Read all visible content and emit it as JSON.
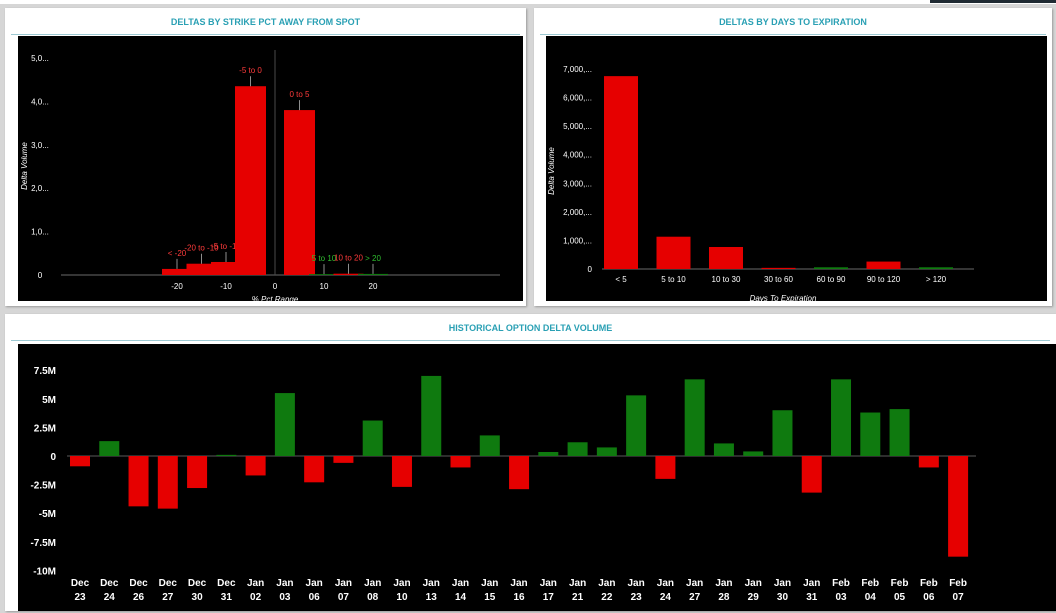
{
  "colors": {
    "positive": "#0f7a0f",
    "negative": "#e60000",
    "panel_title": "#2aa0b4",
    "background": "#000000"
  },
  "chart_data": [
    {
      "type": "bar",
      "title": "DELTAS BY STRIKE PCT AWAY FROM SPOT",
      "xlabel": "% Pct Range",
      "ylabel": "Delta Volume",
      "x_ticks": [
        "-20",
        "-10",
        "0",
        "10",
        "20"
      ],
      "y_ticks": [
        "0",
        "1,0...",
        "2,0...",
        "3,0...",
        "4,0...",
        "5,0..."
      ],
      "ylim": [
        0,
        5000
      ],
      "categories": [
        "< -20",
        "-20 to -10",
        "-5 to -10",
        "-5 to 0",
        "0 to 5",
        "5 to 10",
        "10 to 20",
        "> 20"
      ],
      "values": [
        140,
        260,
        300,
        4350,
        3800,
        20,
        30,
        25
      ],
      "signs": [
        "negative",
        "negative",
        "negative",
        "negative",
        "negative",
        "positive",
        "negative",
        "positive"
      ]
    },
    {
      "type": "bar",
      "title": "DELTAS BY DAYS TO EXPIRATION",
      "xlabel": "Days To Expiration",
      "ylabel": "Delta Volume",
      "y_ticks": [
        "0",
        "1,000,...",
        "2,000,...",
        "3,000,...",
        "4,000,...",
        "5,000,...",
        "6,000,...",
        "7,000,..."
      ],
      "ylim": [
        0,
        7000
      ],
      "categories": [
        "< 5",
        "5 to 10",
        "10 to 30",
        "30 to 60",
        "60 to 90",
        "90 to 120",
        "> 120"
      ],
      "values": [
        6750,
        1130,
        770,
        40,
        60,
        260,
        60
      ],
      "signs": [
        "negative",
        "negative",
        "negative",
        "negative",
        "positive",
        "negative",
        "positive"
      ]
    },
    {
      "type": "bar",
      "title": "HISTORICAL OPTION DELTA VOLUME",
      "y_ticks": [
        "7.5M",
        "5M",
        "2.5M",
        "0",
        "-2.5M",
        "-5M",
        "-7.5M",
        "-10M"
      ],
      "ylim": [
        -10,
        7.5
      ],
      "y_unit": "M",
      "categories": [
        {
          "month": "Dec",
          "day": "23"
        },
        {
          "month": "Dec",
          "day": "24"
        },
        {
          "month": "Dec",
          "day": "26"
        },
        {
          "month": "Dec",
          "day": "27"
        },
        {
          "month": "Dec",
          "day": "30"
        },
        {
          "month": "Dec",
          "day": "31"
        },
        {
          "month": "Jan",
          "day": "02"
        },
        {
          "month": "Jan",
          "day": "03"
        },
        {
          "month": "Jan",
          "day": "06"
        },
        {
          "month": "Jan",
          "day": "07"
        },
        {
          "month": "Jan",
          "day": "08"
        },
        {
          "month": "Jan",
          "day": "10"
        },
        {
          "month": "Jan",
          "day": "13"
        },
        {
          "month": "Jan",
          "day": "14"
        },
        {
          "month": "Jan",
          "day": "15"
        },
        {
          "month": "Jan",
          "day": "16"
        },
        {
          "month": "Jan",
          "day": "17"
        },
        {
          "month": "Jan",
          "day": "21"
        },
        {
          "month": "Jan",
          "day": "22"
        },
        {
          "month": "Jan",
          "day": "23"
        },
        {
          "month": "Jan",
          "day": "24"
        },
        {
          "month": "Jan",
          "day": "27"
        },
        {
          "month": "Jan",
          "day": "28"
        },
        {
          "month": "Jan",
          "day": "29"
        },
        {
          "month": "Jan",
          "day": "30"
        },
        {
          "month": "Jan",
          "day": "31"
        },
        {
          "month": "Feb",
          "day": "03"
        },
        {
          "month": "Feb",
          "day": "04"
        },
        {
          "month": "Feb",
          "day": "05"
        },
        {
          "month": "Feb",
          "day": "06"
        },
        {
          "month": "Feb",
          "day": "07"
        }
      ],
      "values": [
        -0.9,
        1.3,
        -4.4,
        -4.6,
        -2.8,
        0.1,
        -1.7,
        5.5,
        -2.3,
        -0.6,
        3.1,
        -2.7,
        7.0,
        -1.0,
        1.8,
        -2.9,
        0.35,
        1.2,
        0.75,
        5.3,
        -2.0,
        6.7,
        1.1,
        0.4,
        4.0,
        -3.2,
        6.7,
        3.8,
        4.1,
        -1.0,
        -8.8
      ]
    }
  ]
}
